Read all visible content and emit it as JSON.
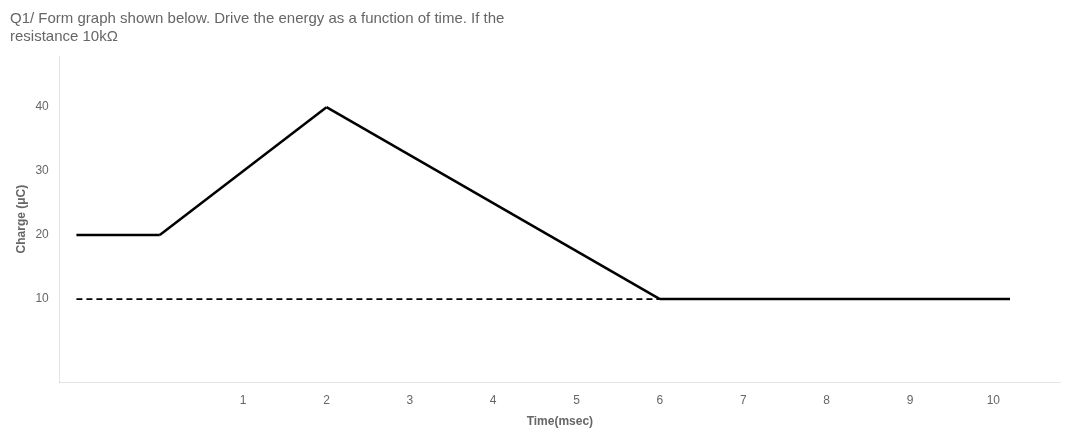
{
  "chart_data": {
    "type": "line",
    "title": "Q1/ Form graph shown below. Drive the energy as a function of time. If the\nresistance 10kΩ",
    "xlabel": "Time(msec)",
    "ylabel": "Charge (μC)",
    "series": [
      {
        "x": [
          -1.0,
          0
        ],
        "values": [
          20,
          20
        ],
        "color": "#000000",
        "line_style": "solid"
      },
      {
        "x": [
          0,
          2
        ],
        "values": [
          20,
          40
        ],
        "color": "#000000",
        "line_style": "solid"
      },
      {
        "x": [
          2,
          6
        ],
        "values": [
          40,
          10
        ],
        "color": "#000000",
        "line_style": "solid"
      },
      {
        "x": [
          6,
          10.2
        ],
        "values": [
          10,
          10
        ],
        "color": "#000000",
        "line_style": "solid"
      },
      {
        "x": [
          -1.0,
          6
        ],
        "values": [
          10,
          10
        ],
        "color": "#000000",
        "line_style": "dashed"
      }
    ],
    "xlim": [
      -1.2,
      10.8
    ],
    "xticks": [
      1,
      2,
      3,
      4,
      5,
      6,
      7,
      8,
      9,
      10
    ],
    "ylim": [
      -3,
      48
    ],
    "yticks": [
      10,
      20,
      30,
      40
    ],
    "grid": false,
    "marker": "none"
  }
}
